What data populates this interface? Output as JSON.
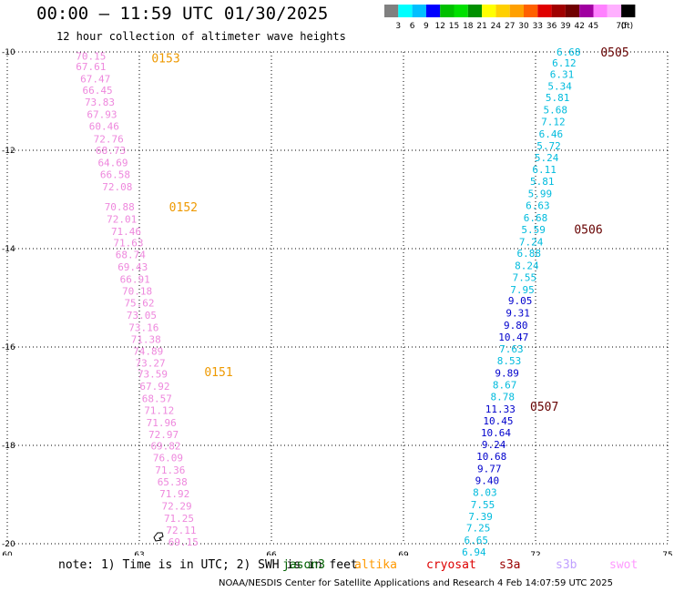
{
  "header": {
    "title": "00:00 – 11:59 UTC 01/30/2025",
    "subtitle": "12 hour collection of altimeter wave heights"
  },
  "colorbar": {
    "colors": [
      "#808080",
      "#00ffff",
      "#00bfff",
      "#0000ff",
      "#00c000",
      "#00e000",
      "#009000",
      "#ffff00",
      "#ffd000",
      "#ffa000",
      "#ff6000",
      "#e00000",
      "#a00000",
      "#700000",
      "#a000a0",
      "#ff80ff",
      "#ffb0ff",
      "#000000"
    ],
    "labels": [
      "3",
      "6",
      "9",
      "12",
      "15",
      "18",
      "21",
      "24",
      "27",
      "30",
      "33",
      "36",
      "39",
      "42",
      "45",
      "70"
    ],
    "unit": "(ft)"
  },
  "footer": {
    "note": "note:  1) Time is in UTC; 2) SWH is in feet",
    "satellites": [
      {
        "name": "jason3",
        "color": "#006000"
      },
      {
        "name": "altika",
        "color": "#ff9900"
      },
      {
        "name": "cryosat",
        "color": "#dd0000"
      },
      {
        "name": "s3a",
        "color": "#990000"
      },
      {
        "name": "s3b",
        "color": "#c0a0ff"
      },
      {
        "name": "swot",
        "color": "#ff99ff"
      }
    ],
    "credit": "NOAA/NESDIS Center for Satellite Applications and Research     4 Feb 14:07:59 UTC 2025"
  },
  "chart_data": {
    "type": "scatter",
    "title": "00:00 – 11:59 UTC 01/30/2025",
    "xlim": [
      60,
      75
    ],
    "ylim": [
      -20,
      -10
    ],
    "x_ticks": [
      "60",
      "63",
      "66",
      "69",
      "72",
      "75"
    ],
    "y_ticks": [
      "-10",
      "-12",
      "-14",
      "-16",
      "-18",
      "-20"
    ],
    "grid": true,
    "series": [
      {
        "name": "swot",
        "color": "#ee88dd",
        "points": [
          {
            "x": 61.9,
            "y": -10.08,
            "v": "70.15"
          },
          {
            "x": 61.9,
            "y": -10.3,
            "v": "67.61"
          },
          {
            "x": 62.0,
            "y": -10.55,
            "v": "67.47"
          },
          {
            "x": 62.05,
            "y": -10.78,
            "v": "66.45"
          },
          {
            "x": 62.1,
            "y": -11.02,
            "v": "73.83"
          },
          {
            "x": 62.15,
            "y": -11.27,
            "v": "67.93"
          },
          {
            "x": 62.2,
            "y": -11.51,
            "v": "60.46"
          },
          {
            "x": 62.3,
            "y": -11.77,
            "v": "72.76"
          },
          {
            "x": 62.35,
            "y": -12.0,
            "v": "68.73"
          },
          {
            "x": 62.4,
            "y": -12.25,
            "v": "64.69"
          },
          {
            "x": 62.45,
            "y": -12.49,
            "v": "66.58"
          },
          {
            "x": 62.5,
            "y": -12.74,
            "v": "72.08"
          },
          {
            "x": 62.55,
            "y": -13.15,
            "v": "70.88"
          },
          {
            "x": 62.6,
            "y": -13.4,
            "v": "72.01"
          },
          {
            "x": 62.7,
            "y": -13.65,
            "v": "71.46"
          },
          {
            "x": 62.75,
            "y": -13.88,
            "v": "71.63"
          },
          {
            "x": 62.8,
            "y": -14.12,
            "v": "68.74"
          },
          {
            "x": 62.85,
            "y": -14.37,
            "v": "69.43"
          },
          {
            "x": 62.9,
            "y": -14.62,
            "v": "66.91"
          },
          {
            "x": 62.95,
            "y": -14.86,
            "v": "70.18"
          },
          {
            "x": 63.0,
            "y": -15.1,
            "v": "75.62"
          },
          {
            "x": 63.05,
            "y": -15.35,
            "v": "73.05"
          },
          {
            "x": 63.1,
            "y": -15.6,
            "v": "73.16"
          },
          {
            "x": 63.15,
            "y": -15.84,
            "v": "71.38"
          },
          {
            "x": 63.2,
            "y": -16.08,
            "v": "74.89"
          },
          {
            "x": 63.25,
            "y": -16.32,
            "v": "73.27"
          },
          {
            "x": 63.3,
            "y": -16.55,
            "v": "73.59"
          },
          {
            "x": 63.35,
            "y": -16.8,
            "v": "67.92"
          },
          {
            "x": 63.4,
            "y": -17.05,
            "v": "68.57"
          },
          {
            "x": 63.45,
            "y": -17.29,
            "v": "71.12"
          },
          {
            "x": 63.5,
            "y": -17.54,
            "v": "71.96"
          },
          {
            "x": 63.55,
            "y": -17.78,
            "v": "72.97"
          },
          {
            "x": 63.6,
            "y": -18.01,
            "v": "69.82"
          },
          {
            "x": 63.65,
            "y": -18.25,
            "v": "76.09"
          },
          {
            "x": 63.7,
            "y": -18.5,
            "v": "71.36"
          },
          {
            "x": 63.75,
            "y": -18.74,
            "v": "65.38"
          },
          {
            "x": 63.8,
            "y": -18.98,
            "v": "71.92"
          },
          {
            "x": 63.85,
            "y": -19.23,
            "v": "72.29"
          },
          {
            "x": 63.9,
            "y": -19.48,
            "v": "71.25"
          },
          {
            "x": 63.95,
            "y": -19.72,
            "v": "72.11"
          },
          {
            "x": 64.0,
            "y": -19.96,
            "v": "69.15"
          }
        ]
      },
      {
        "name": "jason3",
        "color": "mixed",
        "points": [
          {
            "x": 72.75,
            "y": -10.0,
            "v": "6.68",
            "c": "#00bbdd"
          },
          {
            "x": 72.65,
            "y": -10.22,
            "v": "6.12",
            "c": "#00bbdd"
          },
          {
            "x": 72.6,
            "y": -10.45,
            "v": "6.31",
            "c": "#00bbdd"
          },
          {
            "x": 72.55,
            "y": -10.69,
            "v": "5.34",
            "c": "#00bbdd"
          },
          {
            "x": 72.5,
            "y": -10.93,
            "v": "5.81",
            "c": "#00bbdd"
          },
          {
            "x": 72.45,
            "y": -11.18,
            "v": "5.68",
            "c": "#00bbdd"
          },
          {
            "x": 72.4,
            "y": -11.42,
            "v": "7.12",
            "c": "#00bbdd"
          },
          {
            "x": 72.35,
            "y": -11.67,
            "v": "6.46",
            "c": "#00bbdd"
          },
          {
            "x": 72.3,
            "y": -11.91,
            "v": "5.72",
            "c": "#00bbdd"
          },
          {
            "x": 72.25,
            "y": -12.15,
            "v": "5.24",
            "c": "#00bbdd"
          },
          {
            "x": 72.2,
            "y": -12.39,
            "v": "6.11",
            "c": "#00bbdd"
          },
          {
            "x": 72.15,
            "y": -12.63,
            "v": "5.81",
            "c": "#00bbdd"
          },
          {
            "x": 72.1,
            "y": -12.88,
            "v": "5.99",
            "c": "#00bbdd"
          },
          {
            "x": 72.05,
            "y": -13.12,
            "v": "6.63",
            "c": "#00bbdd"
          },
          {
            "x": 72.0,
            "y": -13.37,
            "v": "6.68",
            "c": "#00bbdd"
          },
          {
            "x": 71.95,
            "y": -13.61,
            "v": "5.59",
            "c": "#00bbdd"
          },
          {
            "x": 71.9,
            "y": -13.86,
            "v": "7.24",
            "c": "#00bbdd"
          },
          {
            "x": 71.85,
            "y": -14.09,
            "v": "6.88",
            "c": "#00bbdd"
          },
          {
            "x": 71.8,
            "y": -14.34,
            "v": "8.24",
            "c": "#00bbdd"
          },
          {
            "x": 71.75,
            "y": -14.58,
            "v": "7.55",
            "c": "#00bbdd"
          },
          {
            "x": 71.7,
            "y": -14.83,
            "v": "7.95",
            "c": "#00bbdd"
          },
          {
            "x": 71.65,
            "y": -15.06,
            "v": "9.05",
            "c": "#0000cc"
          },
          {
            "x": 71.6,
            "y": -15.31,
            "v": "9.31",
            "c": "#0000cc"
          },
          {
            "x": 71.55,
            "y": -15.56,
            "v": "9.80",
            "c": "#0000cc"
          },
          {
            "x": 71.5,
            "y": -15.8,
            "v": "10.47",
            "c": "#0000cc"
          },
          {
            "x": 71.45,
            "y": -16.04,
            "v": "7.63",
            "c": "#00bbdd"
          },
          {
            "x": 71.4,
            "y": -16.28,
            "v": "8.53",
            "c": "#00bbdd"
          },
          {
            "x": 71.35,
            "y": -16.53,
            "v": "9.89",
            "c": "#0000cc"
          },
          {
            "x": 71.3,
            "y": -16.77,
            "v": "8.67",
            "c": "#00bbdd"
          },
          {
            "x": 71.25,
            "y": -17.01,
            "v": "8.78",
            "c": "#00bbdd"
          },
          {
            "x": 71.2,
            "y": -17.26,
            "v": "11.33",
            "c": "#0000cc"
          },
          {
            "x": 71.15,
            "y": -17.5,
            "v": "10.45",
            "c": "#0000cc"
          },
          {
            "x": 71.1,
            "y": -17.74,
            "v": "10.64",
            "c": "#0000cc"
          },
          {
            "x": 71.05,
            "y": -17.98,
            "v": "9.24",
            "c": "#0000cc"
          },
          {
            "x": 71.0,
            "y": -18.22,
            "v": "10.68",
            "c": "#0000cc"
          },
          {
            "x": 70.95,
            "y": -18.47,
            "v": "9.77",
            "c": "#0000cc"
          },
          {
            "x": 70.9,
            "y": -18.71,
            "v": "9.40",
            "c": "#0000cc"
          },
          {
            "x": 70.85,
            "y": -18.95,
            "v": "8.03",
            "c": "#00bbdd"
          },
          {
            "x": 70.8,
            "y": -19.2,
            "v": "7.55",
            "c": "#00bbdd"
          },
          {
            "x": 70.75,
            "y": -19.44,
            "v": "7.39",
            "c": "#00bbdd"
          },
          {
            "x": 70.7,
            "y": -19.68,
            "v": "7.25",
            "c": "#00bbdd"
          },
          {
            "x": 70.65,
            "y": -19.93,
            "v": "6.65",
            "c": "#00bbdd"
          },
          {
            "x": 70.6,
            "y": -20.17,
            "v": "6.94",
            "c": "#00bbdd"
          }
        ]
      }
    ],
    "time_labels": [
      {
        "text": "0153",
        "x": 63.6,
        "y": -10.12,
        "color": "#ee9900"
      },
      {
        "text": "0152",
        "x": 64.0,
        "y": -13.15,
        "color": "#ee9900"
      },
      {
        "text": "0151",
        "x": 64.8,
        "y": -16.5,
        "color": "#ee9900"
      },
      {
        "text": "0505",
        "x": 73.8,
        "y": -10.0,
        "color": "#660000"
      },
      {
        "text": "0506",
        "x": 73.2,
        "y": -13.6,
        "color": "#660000"
      },
      {
        "text": "0507",
        "x": 72.2,
        "y": -17.2,
        "color": "#660000"
      }
    ]
  }
}
